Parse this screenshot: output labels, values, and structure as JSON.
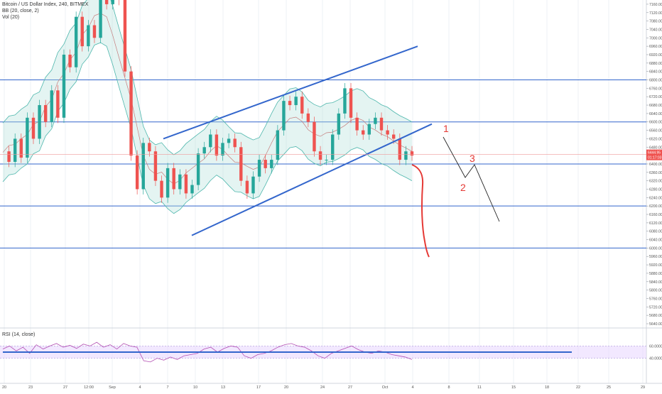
{
  "header": {
    "symbol_line": "Bitcoin / US Dollar Index, 240, BITMEX",
    "bb_label": "BB (20, close, 2)",
    "vol_label": "Vol (20)"
  },
  "rsi_panel": {
    "label": "RSI (14, close)",
    "level_high": "60.0000",
    "level_low": "40.0000"
  },
  "price_badges": {
    "last_price": "6444.95",
    "countdown": "01:17:03"
  },
  "annotations": {
    "wave_1": "1",
    "wave_2": "2",
    "wave_3": "3"
  },
  "colors": {
    "candle_up": "#26a69a",
    "candle_down": "#ef5350",
    "band_fill": "#b2dfdb",
    "band_line": "#4db6ac",
    "drawing_blue": "#3366cc",
    "wave_red": "#e53935",
    "rsi_fill": "#e9d8ff",
    "rsi_line": "#b34fb3"
  },
  "chart_data": {
    "type": "candlestick",
    "symbol": "Bitcoin / US Dollar Index",
    "interval": "240",
    "exchange": "BITMEX",
    "indicators": [
      "BB (20, close, 2)",
      "Vol (20)",
      "RSI (14, close)"
    ],
    "x_tick_labels": [
      "20",
      "23",
      "27",
      "12:00",
      "Sep",
      "4",
      "7",
      "10",
      "13",
      "17",
      "20",
      "24",
      "27",
      "Oct",
      "4",
      "8",
      "11",
      "15",
      "18",
      "22",
      "25",
      "29"
    ],
    "y_tick_labels": [
      "7160.00",
      "7120.00",
      "7080.00",
      "7040.00",
      "7000.00",
      "6960.00",
      "6920.00",
      "6880.00",
      "6840.00",
      "6800.00",
      "6760.00",
      "6720.00",
      "6680.00",
      "6640.00",
      "6600.00",
      "6560.00",
      "6520.00",
      "6480.00",
      "6440.00",
      "6400.00",
      "6360.00",
      "6320.00",
      "6280.00",
      "6240.00",
      "6200.00",
      "6160.00",
      "6120.00",
      "6080.00",
      "6040.00",
      "6000.00",
      "5960.00",
      "5920.00",
      "5880.00",
      "5840.00",
      "5800.00",
      "5760.00",
      "5720.00",
      "5680.00",
      "5640.00"
    ],
    "ylim": [
      5640,
      7180
    ],
    "horizontal_levels": [
      6800,
      6600,
      6400,
      6200,
      6000
    ],
    "channel": {
      "upper": [
        [
          "7",
          6520
        ],
        [
          "1",
          6960
        ]
      ],
      "lower": [
        [
          "7",
          6060
        ],
        [
          "1",
          6590
        ]
      ]
    },
    "price_path": [
      [
        "20",
        6460
      ],
      [
        "20",
        6410
      ],
      [
        "21",
        6520
      ],
      [
        "22",
        6430
      ],
      [
        "23",
        6620
      ],
      [
        "23",
        6520
      ],
      [
        "24",
        6680
      ],
      [
        "25",
        6600
      ],
      [
        "26",
        6750
      ],
      [
        "27",
        6620
      ],
      [
        "27",
        6920
      ],
      [
        "28",
        6860
      ],
      [
        "29",
        7100
      ],
      [
        "30",
        6960
      ],
      [
        "31",
        7060
      ],
      [
        "Sep",
        7000
      ],
      [
        "Sep",
        7200
      ],
      [
        "3",
        7160
      ],
      [
        "4",
        7260
      ],
      [
        "5",
        7180
      ],
      [
        "5",
        6840
      ],
      [
        "6",
        6440
      ],
      [
        "6",
        6280
      ],
      [
        "7",
        6500
      ],
      [
        "7",
        6460
      ],
      [
        "8",
        6320
      ],
      [
        "8",
        6240
      ],
      [
        "9",
        6380
      ],
      [
        "9",
        6280
      ],
      [
        "10",
        6350
      ],
      [
        "11",
        6260
      ],
      [
        "11",
        6300
      ],
      [
        "12",
        6450
      ],
      [
        "13",
        6480
      ],
      [
        "13",
        6540
      ],
      [
        "14",
        6440
      ],
      [
        "15",
        6500
      ],
      [
        "15",
        6520
      ],
      [
        "16",
        6480
      ],
      [
        "17",
        6320
      ],
      [
        "17",
        6260
      ],
      [
        "18",
        6340
      ],
      [
        "18",
        6420
      ],
      [
        "19",
        6380
      ],
      [
        "20",
        6420
      ],
      [
        "20",
        6560
      ],
      [
        "21",
        6700
      ],
      [
        "22",
        6680
      ],
      [
        "22",
        6720
      ],
      [
        "23",
        6640
      ],
      [
        "24",
        6600
      ],
      [
        "24",
        6460
      ],
      [
        "25",
        6420
      ],
      [
        "25",
        6420
      ],
      [
        "26",
        6540
      ],
      [
        "27",
        6640
      ],
      [
        "27",
        6760
      ],
      [
        "28",
        6620
      ],
      [
        "28",
        6560
      ],
      [
        "29",
        6540
      ],
      [
        "30",
        6590
      ],
      [
        "30",
        6620
      ],
      [
        "Oct",
        6560
      ],
      [
        "Oct",
        6540
      ],
      [
        "2",
        6520
      ],
      [
        "3",
        6420
      ],
      [
        "3",
        6460
      ],
      [
        "4",
        6440
      ]
    ],
    "projection_red_path": [
      [
        "3",
        6440
      ],
      [
        "4",
        6400
      ],
      [
        "4",
        6200
      ],
      [
        "5",
        6080
      ]
    ],
    "projection_wave": [
      [
        "5",
        6600
      ],
      [
        "6",
        6400
      ],
      [
        "7",
        6460
      ],
      [
        "9",
        6240
      ]
    ],
    "rsi": {
      "levels": [
        60,
        40
      ],
      "drawn_line": 50,
      "values": [
        55,
        60,
        52,
        58,
        48,
        62,
        55,
        60,
        64,
        58,
        61,
        56,
        63,
        60,
        66,
        58,
        62,
        55,
        64,
        60,
        58,
        36,
        34,
        40,
        37,
        42,
        38,
        44,
        46,
        48,
        55,
        58,
        50,
        56,
        60,
        58,
        44,
        40,
        46,
        48,
        52,
        58,
        62,
        64,
        60,
        58,
        52,
        44,
        40,
        48,
        52,
        56,
        60,
        54,
        50,
        48,
        52,
        50,
        46,
        44,
        42,
        38
      ]
    }
  }
}
